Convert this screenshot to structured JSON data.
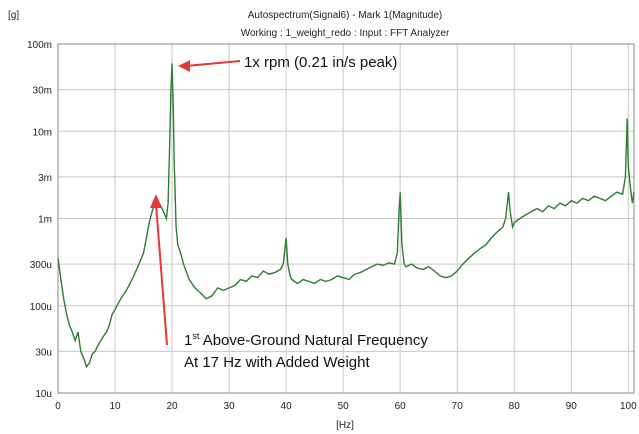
{
  "chart_data": {
    "type": "line",
    "title": "Autospectrum(Signal6) - Mark 1(Magnitude)",
    "subtitle": "Working : 1_weight_redo : Input : FFT Analyzer",
    "ylabel": "[g]",
    "xlabel": "[Hz]",
    "y_scale": "log",
    "ylim": [
      0.008,
      0.1
    ],
    "xlim": [
      0,
      101
    ],
    "grid": true,
    "line_color": "#2e7d32",
    "x_ticks": [
      0,
      10,
      20,
      30,
      40,
      50,
      60,
      70,
      80,
      90,
      100
    ],
    "y_ticks": [
      {
        "value": 1e-05,
        "label": "10u"
      },
      {
        "value": 3e-05,
        "label": "30u"
      },
      {
        "value": 0.0001,
        "label": "100u"
      },
      {
        "value": 0.0003,
        "label": "300u"
      },
      {
        "value": 0.001,
        "label": "1m"
      },
      {
        "value": 0.003,
        "label": "3m"
      },
      {
        "value": 0.01,
        "label": "10m"
      },
      {
        "value": 0.03,
        "label": "30m"
      },
      {
        "value": 0.1,
        "label": "100m"
      }
    ],
    "series": [
      {
        "x": [
          0,
          0.5,
          1,
          1.5,
          2,
          2.5,
          3,
          3.5,
          4,
          4.5,
          5,
          5.5,
          6,
          6.5,
          7,
          7.5,
          8,
          8.5,
          9,
          9.5,
          10,
          11,
          12,
          13,
          14,
          15,
          15.5,
          16,
          16.5,
          17,
          17.5,
          18,
          18.5,
          19,
          19.3,
          19.6,
          19.8,
          20,
          20.2,
          20.4,
          20.7,
          21,
          21.5,
          22,
          23,
          24,
          25,
          26,
          27,
          28,
          29,
          30,
          31,
          32,
          33,
          34,
          35,
          36,
          37,
          38,
          39,
          39.5,
          39.8,
          40,
          40.3,
          40.7,
          41,
          42,
          43,
          44,
          45,
          46,
          47,
          48,
          49,
          50,
          51,
          52,
          53,
          54,
          55,
          56,
          57,
          58,
          59,
          59.5,
          59.8,
          60,
          60.3,
          60.7,
          61,
          62,
          63,
          64,
          65,
          66,
          67,
          68,
          69,
          70,
          71,
          72,
          73,
          74,
          75,
          76,
          77,
          78,
          78.5,
          79,
          79.3,
          79.7,
          80,
          81,
          82,
          83,
          84,
          85,
          86,
          87,
          88,
          89,
          90,
          91,
          92,
          93,
          94,
          95,
          96,
          97,
          98,
          99,
          99.5,
          99.8,
          100,
          100.3,
          100.7,
          101
        ],
        "y": [
          0.00035,
          0.0002,
          0.00012,
          8e-05,
          6e-05,
          5e-05,
          4e-05,
          5e-05,
          3e-05,
          2.5e-05,
          2e-05,
          2.2e-05,
          2.8e-05,
          3e-05,
          3.5e-05,
          4e-05,
          4.5e-05,
          5e-05,
          6e-05,
          8e-05,
          9e-05,
          0.00012,
          0.00015,
          0.0002,
          0.00028,
          0.0004,
          0.0006,
          0.0009,
          0.0012,
          0.0015,
          0.0016,
          0.0014,
          0.0012,
          0.001,
          0.0015,
          0.008,
          0.03,
          0.06,
          0.02,
          0.004,
          0.0008,
          0.0005,
          0.0004,
          0.0003,
          0.0002,
          0.00016,
          0.00014,
          0.00012,
          0.00013,
          0.00016,
          0.00015,
          0.00016,
          0.00017,
          0.0002,
          0.00019,
          0.00022,
          0.00021,
          0.00025,
          0.00023,
          0.00024,
          0.00026,
          0.0003,
          0.00045,
          0.0006,
          0.0003,
          0.00022,
          0.0002,
          0.00018,
          0.0002,
          0.00019,
          0.00018,
          0.0002,
          0.00019,
          0.0002,
          0.00022,
          0.00021,
          0.0002,
          0.00023,
          0.00024,
          0.00026,
          0.00028,
          0.0003,
          0.00029,
          0.00031,
          0.0003,
          0.0004,
          0.0012,
          0.002,
          0.0005,
          0.0003,
          0.00028,
          0.0003,
          0.00027,
          0.00026,
          0.00028,
          0.00025,
          0.00022,
          0.00021,
          0.00022,
          0.00025,
          0.0003,
          0.00035,
          0.0004,
          0.00045,
          0.0005,
          0.0006,
          0.0007,
          0.0008,
          0.001,
          0.002,
          0.0012,
          0.0008,
          0.0009,
          0.001,
          0.0011,
          0.0012,
          0.0013,
          0.0012,
          0.0014,
          0.0013,
          0.0015,
          0.0014,
          0.0016,
          0.0015,
          0.0017,
          0.0016,
          0.0018,
          0.0017,
          0.0016,
          0.0018,
          0.002,
          0.0019,
          0.003,
          0.014,
          0.004,
          0.0025,
          0.0015,
          0.002
        ]
      }
    ],
    "annotations": [
      {
        "text": "1x rpm (0.21 in/s peak)",
        "x": 20,
        "y": 0.06
      },
      {
        "text_sup": "st",
        "text_pre": "1",
        "text_line1": " Above-Ground Natural Frequency",
        "text_line2": "At 17 Hz with Added Weight",
        "x": 17,
        "y": 0.0015
      }
    ]
  }
}
